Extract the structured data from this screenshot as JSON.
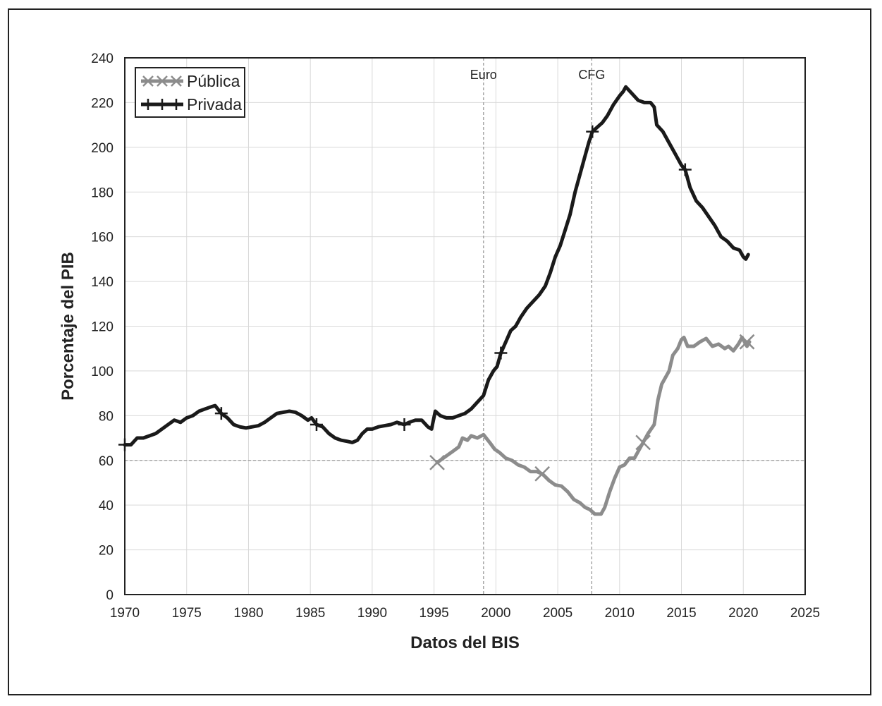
{
  "chart_data": {
    "type": "line",
    "xlabel": "Datos del BIS",
    "ylabel": "Porcentaje del PIB",
    "xlim": [
      1970,
      2025
    ],
    "ylim": [
      0,
      240
    ],
    "xticks": [
      1970,
      1975,
      1980,
      1985,
      1990,
      1995,
      2000,
      2005,
      2010,
      2015,
      2020,
      2025
    ],
    "yticks": [
      0,
      20,
      40,
      60,
      80,
      100,
      120,
      140,
      160,
      180,
      200,
      220,
      240
    ],
    "grid": true,
    "legend_position": "top-left",
    "reference_lines": [
      {
        "axis": "x",
        "value": 1999,
        "label": "Euro"
      },
      {
        "axis": "x",
        "value": 2007.75,
        "label": "CFG"
      },
      {
        "axis": "y",
        "value": 60,
        "label": ""
      }
    ],
    "series": [
      {
        "name": "Pública",
        "color": "#8c8c8c",
        "marker": "x",
        "markers": [
          [
            1995.25,
            59
          ],
          [
            2003.75,
            54
          ],
          [
            2011.9,
            68
          ],
          [
            2020.3,
            113
          ]
        ],
        "points": [
          [
            1995.25,
            59
          ],
          [
            1996.0,
            62
          ],
          [
            1996.5,
            64
          ],
          [
            1997.0,
            66
          ],
          [
            1997.3,
            70
          ],
          [
            1997.7,
            69
          ],
          [
            1998.0,
            71
          ],
          [
            1998.5,
            70
          ],
          [
            1999.0,
            71.5
          ],
          [
            1999.5,
            68
          ],
          [
            1999.9,
            65
          ],
          [
            2000.3,
            63.5
          ],
          [
            2000.8,
            61
          ],
          [
            2001.3,
            60
          ],
          [
            2001.8,
            58
          ],
          [
            2002.3,
            57
          ],
          [
            2002.8,
            55
          ],
          [
            2003.3,
            55
          ],
          [
            2003.75,
            54
          ],
          [
            2004.3,
            51
          ],
          [
            2004.8,
            49
          ],
          [
            2005.3,
            48.5
          ],
          [
            2005.8,
            46
          ],
          [
            2006.3,
            42.5
          ],
          [
            2006.8,
            41
          ],
          [
            2007.2,
            39
          ],
          [
            2007.6,
            38
          ],
          [
            2008.0,
            36
          ],
          [
            2008.5,
            36
          ],
          [
            2008.8,
            39
          ],
          [
            2009.2,
            46
          ],
          [
            2009.6,
            52
          ],
          [
            2010.0,
            57
          ],
          [
            2010.4,
            58
          ],
          [
            2010.8,
            61
          ],
          [
            2011.2,
            61
          ],
          [
            2011.6,
            65
          ],
          [
            2011.9,
            68
          ],
          [
            2012.3,
            72
          ],
          [
            2012.8,
            76
          ],
          [
            2013.1,
            87
          ],
          [
            2013.4,
            94
          ],
          [
            2013.8,
            98
          ],
          [
            2014.0,
            100
          ],
          [
            2014.3,
            107
          ],
          [
            2014.7,
            110
          ],
          [
            2015.0,
            114
          ],
          [
            2015.2,
            115
          ],
          [
            2015.5,
            111
          ],
          [
            2016.0,
            111
          ],
          [
            2016.5,
            113
          ],
          [
            2017.0,
            114.5
          ],
          [
            2017.5,
            111
          ],
          [
            2018.0,
            112
          ],
          [
            2018.5,
            110
          ],
          [
            2018.8,
            111
          ],
          [
            2019.2,
            109
          ],
          [
            2019.6,
            112
          ],
          [
            2019.9,
            115
          ],
          [
            2020.3,
            111
          ],
          [
            2020.5,
            113
          ]
        ]
      },
      {
        "name": "Privada",
        "color": "#1a1a1a",
        "marker": "+",
        "markers": [
          [
            1970.0,
            67
          ],
          [
            1977.8,
            81
          ],
          [
            1985.5,
            76
          ],
          [
            1992.6,
            76
          ],
          [
            2000.4,
            108
          ],
          [
            2007.8,
            207
          ],
          [
            2015.3,
            190
          ]
        ],
        "points": [
          [
            1970.0,
            67
          ],
          [
            1970.5,
            67
          ],
          [
            1971.0,
            70
          ],
          [
            1971.5,
            70
          ],
          [
            1972.0,
            71
          ],
          [
            1972.5,
            72
          ],
          [
            1973.0,
            74
          ],
          [
            1973.5,
            76
          ],
          [
            1974.0,
            78
          ],
          [
            1974.5,
            77
          ],
          [
            1975.0,
            79
          ],
          [
            1975.5,
            80
          ],
          [
            1976.0,
            82
          ],
          [
            1976.5,
            83
          ],
          [
            1977.0,
            84
          ],
          [
            1977.3,
            84.5
          ],
          [
            1977.8,
            81
          ],
          [
            1978.3,
            79
          ],
          [
            1978.8,
            76
          ],
          [
            1979.3,
            75
          ],
          [
            1979.8,
            74.5
          ],
          [
            1980.3,
            75
          ],
          [
            1980.8,
            75.5
          ],
          [
            1981.3,
            77
          ],
          [
            1981.8,
            79
          ],
          [
            1982.3,
            81
          ],
          [
            1982.8,
            81.5
          ],
          [
            1983.3,
            82
          ],
          [
            1983.8,
            81.5
          ],
          [
            1984.3,
            80
          ],
          [
            1984.8,
            78
          ],
          [
            1985.1,
            79
          ],
          [
            1985.5,
            76
          ],
          [
            1986.0,
            75
          ],
          [
            1986.5,
            72
          ],
          [
            1987.0,
            70
          ],
          [
            1987.5,
            69
          ],
          [
            1988.0,
            68.5
          ],
          [
            1988.4,
            68
          ],
          [
            1988.8,
            69
          ],
          [
            1989.2,
            72
          ],
          [
            1989.6,
            74
          ],
          [
            1990.0,
            74
          ],
          [
            1990.5,
            75
          ],
          [
            1991.0,
            75.5
          ],
          [
            1991.5,
            76
          ],
          [
            1992.0,
            77
          ],
          [
            1992.6,
            76
          ],
          [
            1993.0,
            77
          ],
          [
            1993.5,
            78
          ],
          [
            1994.0,
            78
          ],
          [
            1994.5,
            75
          ],
          [
            1994.8,
            74
          ],
          [
            1995.1,
            82
          ],
          [
            1995.5,
            80
          ],
          [
            1996.0,
            79
          ],
          [
            1996.5,
            79
          ],
          [
            1997.0,
            80
          ],
          [
            1997.5,
            81
          ],
          [
            1998.0,
            83
          ],
          [
            1998.5,
            86
          ],
          [
            1999.0,
            89
          ],
          [
            1999.4,
            96
          ],
          [
            1999.8,
            100
          ],
          [
            2000.1,
            102
          ],
          [
            2000.4,
            108
          ],
          [
            2000.8,
            113
          ],
          [
            2001.2,
            118
          ],
          [
            2001.6,
            120
          ],
          [
            2002.0,
            124
          ],
          [
            2002.5,
            128
          ],
          [
            2003.0,
            131
          ],
          [
            2003.5,
            134
          ],
          [
            2004.0,
            138
          ],
          [
            2004.4,
            144
          ],
          [
            2004.8,
            151
          ],
          [
            2005.2,
            156
          ],
          [
            2005.6,
            163
          ],
          [
            2006.0,
            170
          ],
          [
            2006.4,
            180
          ],
          [
            2006.8,
            188
          ],
          [
            2007.2,
            196
          ],
          [
            2007.5,
            202
          ],
          [
            2007.8,
            207
          ],
          [
            2008.2,
            209
          ],
          [
            2008.6,
            211
          ],
          [
            2009.0,
            214
          ],
          [
            2009.5,
            219
          ],
          [
            2010.0,
            223
          ],
          [
            2010.3,
            225
          ],
          [
            2010.5,
            227
          ],
          [
            2011.0,
            224
          ],
          [
            2011.5,
            221
          ],
          [
            2012.0,
            220
          ],
          [
            2012.5,
            220
          ],
          [
            2012.8,
            218
          ],
          [
            2013.0,
            210
          ],
          [
            2013.5,
            207
          ],
          [
            2014.0,
            202
          ],
          [
            2014.5,
            197
          ],
          [
            2015.0,
            192
          ],
          [
            2015.3,
            190
          ],
          [
            2015.7,
            182
          ],
          [
            2016.2,
            176
          ],
          [
            2016.7,
            173
          ],
          [
            2017.2,
            169
          ],
          [
            2017.7,
            165
          ],
          [
            2018.2,
            160
          ],
          [
            2018.7,
            158
          ],
          [
            2019.2,
            155
          ],
          [
            2019.7,
            154
          ],
          [
            2020.0,
            151
          ],
          [
            2020.2,
            150
          ],
          [
            2020.4,
            152
          ]
        ]
      }
    ]
  }
}
